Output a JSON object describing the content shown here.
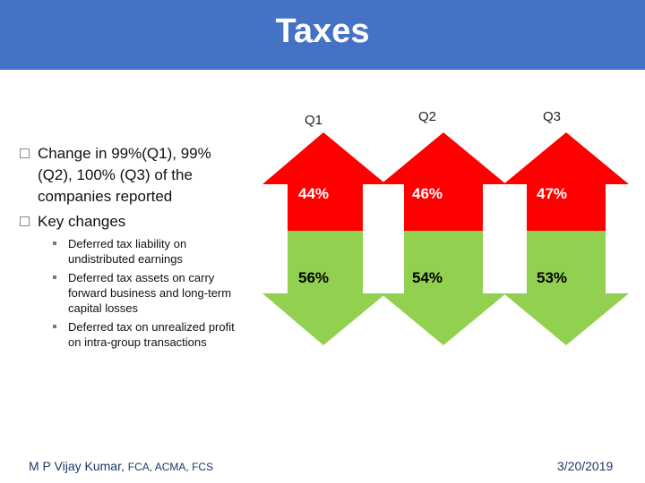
{
  "title": "Taxes",
  "bullets": [
    {
      "text": "Change in 99%(Q1), 99% (Q2), 100% (Q3) of the companies reported"
    },
    {
      "text": "Key changes"
    }
  ],
  "sub_bullets": [
    "Deferred tax liability on undistributed earnings",
    "Deferred tax assets on carry forward business and long-term capital losses",
    "Deferred tax on unrealized profit on intra-group transactions"
  ],
  "quarters": [
    {
      "label": "Q1",
      "top": "44%",
      "bottom": "56%"
    },
    {
      "label": "Q2",
      "top": "46%",
      "bottom": "54%"
    },
    {
      "label": "Q3",
      "top": "47%",
      "bottom": "53%"
    }
  ],
  "colors": {
    "header": "#4472c4",
    "up": "#ff0000",
    "down": "#92d050"
  },
  "footer": {
    "author": "M P Vijay Kumar,",
    "credentials": "FCA, ACMA, FCS",
    "date": "3/20/2019"
  }
}
